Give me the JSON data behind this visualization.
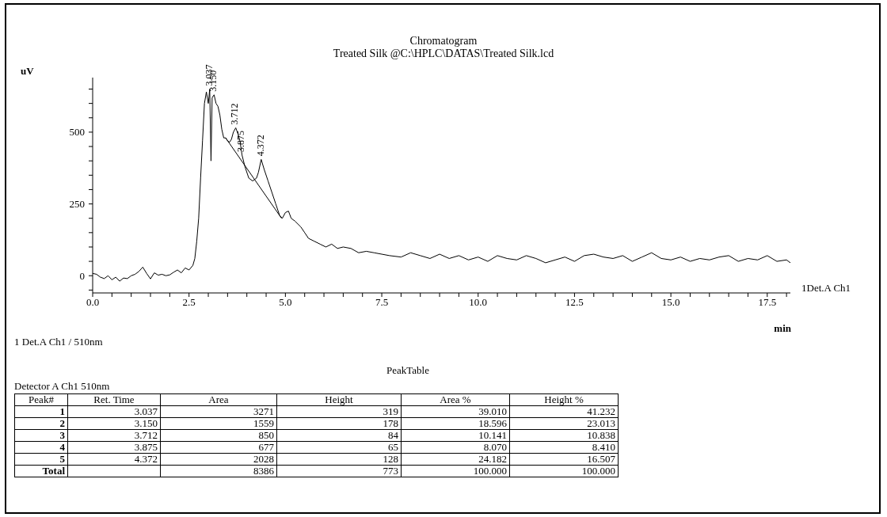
{
  "chart_data": {
    "type": "line",
    "title": "Chromatogram",
    "subtitle": "Treated Silk @C:\\HPLC\\DATAS\\Treated Silk.lcd",
    "ylabel": "uV",
    "xlabel": "min",
    "xlim": [
      0,
      18.1
    ],
    "ylim": [
      -60,
      690
    ],
    "xticks": [
      {
        "value": 0,
        "label": "0.0"
      },
      {
        "value": 0.5,
        "label": null
      },
      {
        "value": 1,
        "label": null
      },
      {
        "value": 1.5,
        "label": null
      },
      {
        "value": 2,
        "label": null
      },
      {
        "value": 2.5,
        "label": "2.5"
      },
      {
        "value": 3,
        "label": null
      },
      {
        "value": 3.5,
        "label": null
      },
      {
        "value": 4,
        "label": null
      },
      {
        "value": 4.5,
        "label": null
      },
      {
        "value": 5,
        "label": "5.0"
      },
      {
        "value": 5.5,
        "label": null
      },
      {
        "value": 6,
        "label": null
      },
      {
        "value": 6.5,
        "label": null
      },
      {
        "value": 7,
        "label": null
      },
      {
        "value": 7.5,
        "label": "7.5"
      },
      {
        "value": 8,
        "label": null
      },
      {
        "value": 8.5,
        "label": null
      },
      {
        "value": 9,
        "label": null
      },
      {
        "value": 9.5,
        "label": null
      },
      {
        "value": 10,
        "label": "10.0"
      },
      {
        "value": 10.5,
        "label": null
      },
      {
        "value": 11,
        "label": null
      },
      {
        "value": 11.5,
        "label": null
      },
      {
        "value": 12,
        "label": null
      },
      {
        "value": 12.5,
        "label": "12.5"
      },
      {
        "value": 13,
        "label": null
      },
      {
        "value": 13.5,
        "label": null
      },
      {
        "value": 14,
        "label": null
      },
      {
        "value": 14.5,
        "label": null
      },
      {
        "value": 15,
        "label": "15.0"
      },
      {
        "value": 15.5,
        "label": null
      },
      {
        "value": 16,
        "label": null
      },
      {
        "value": 16.5,
        "label": null
      },
      {
        "value": 17,
        "label": null
      },
      {
        "value": 17.5,
        "label": "17.5"
      },
      {
        "value": 18,
        "label": null
      }
    ],
    "yticks": [
      {
        "value": -50,
        "label": null
      },
      0,
      {
        "value": 50,
        "label": null
      },
      {
        "value": 100,
        "label": null
      },
      {
        "value": 150,
        "label": null
      },
      {
        "value": 200,
        "label": null
      },
      250,
      {
        "value": 300,
        "label": null
      },
      {
        "value": 350,
        "label": null
      },
      {
        "value": 400,
        "label": null
      },
      {
        "value": 450,
        "label": null
      },
      500,
      {
        "value": 550,
        "label": null
      },
      {
        "value": 600,
        "label": null
      },
      {
        "value": 650,
        "label": null
      }
    ],
    "grid": false,
    "legend": false,
    "marker": "none",
    "line_style": "solid",
    "series": [
      {
        "name": "1Det.A Ch1",
        "color": "#000000",
        "x": [
          0,
          0.1,
          0.2,
          0.3,
          0.4,
          0.5,
          0.6,
          0.7,
          0.8,
          0.9,
          1.0,
          1.1,
          1.2,
          1.3,
          1.4,
          1.5,
          1.6,
          1.7,
          1.8,
          1.9,
          2.0,
          2.1,
          2.2,
          2.3,
          2.4,
          2.5,
          2.6,
          2.65,
          2.7,
          2.75,
          2.8,
          2.85,
          2.9,
          2.95,
          3.0,
          3.037,
          3.07,
          3.1,
          3.15,
          3.2,
          3.25,
          3.3,
          3.35,
          3.4,
          3.45,
          3.5,
          3.55,
          3.6,
          3.65,
          3.712,
          3.78,
          3.82,
          3.875,
          3.95,
          4.05,
          4.15,
          4.25,
          4.3,
          4.372,
          4.45,
          4.55,
          4.65,
          4.75,
          4.85,
          4.92,
          5.0,
          5.08,
          5.15,
          5.25,
          5.4,
          5.5,
          5.6,
          5.75,
          5.9,
          6.05,
          6.2,
          6.35,
          6.5,
          6.7,
          6.9,
          7.1,
          7.3,
          7.5,
          7.7,
          8.0,
          8.25,
          8.5,
          8.75,
          9.0,
          9.25,
          9.5,
          9.75,
          10.0,
          10.25,
          10.5,
          10.75,
          11.0,
          11.25,
          11.5,
          11.75,
          12.0,
          12.25,
          12.5,
          12.75,
          13.0,
          13.25,
          13.5,
          13.75,
          14.0,
          14.25,
          14.5,
          14.75,
          15.0,
          15.25,
          15.5,
          15.75,
          16.0,
          16.25,
          16.5,
          16.75,
          17.0,
          17.25,
          17.5,
          17.75,
          18.0,
          18.1
        ],
        "values": [
          8,
          5,
          -5,
          -10,
          0,
          -14,
          -5,
          -19,
          -8,
          -10,
          0,
          5,
          15,
          30,
          8,
          -11,
          10,
          2,
          5,
          0,
          3,
          12,
          20,
          10,
          27,
          20,
          36,
          60,
          120,
          200,
          340,
          470,
          600,
          640,
          600,
          650,
          400,
          620,
          630,
          600,
          590,
          560,
          510,
          480,
          480,
          470,
          465,
          475,
          500,
          515,
          490,
          470,
          420,
          380,
          340,
          330,
          340,
          360,
          405,
          370,
          330,
          290,
          250,
          210,
          200,
          220,
          225,
          200,
          190,
          170,
          150,
          130,
          120,
          110,
          100,
          110,
          95,
          100,
          95,
          80,
          85,
          80,
          75,
          70,
          65,
          80,
          70,
          60,
          75,
          60,
          70,
          55,
          65,
          50,
          70,
          60,
          55,
          70,
          60,
          45,
          55,
          65,
          50,
          70,
          75,
          65,
          60,
          70,
          50,
          65,
          80,
          60,
          55,
          65,
          50,
          60,
          55,
          65,
          70,
          50,
          60,
          55,
          70,
          50,
          55,
          45
        ]
      },
      {
        "color": "#000000",
        "x": [
          3.45,
          4.9
        ],
        "values": [
          480,
          200
        ]
      }
    ],
    "annotations": [
      {
        "text": "3.037",
        "x": 3.037,
        "y": 650
      },
      {
        "text": "3.150",
        "x": 3.15,
        "y": 630
      },
      {
        "text": "3.712",
        "x": 3.712,
        "y": 515
      },
      {
        "text": "3.875",
        "x": 3.875,
        "y": 420
      },
      {
        "text": "4.372",
        "x": 4.372,
        "y": 405
      },
      "1  Det.A Ch1 / 510nm",
      "PeakTable",
      "Detector A Ch1 510nm",
      "Peak#\tRet. Time\tArea\tHeight\tArea %\tHeight %",
      "1\t3.037\t3271\t319\t39.010\t41.232",
      "2\t3.150\t1559\t178\t18.596\t23.013",
      "3\t3.712\t850\t84\t10.141\t10.838",
      "4\t3.875\t677\t65\t8.070\t8.410",
      "5\t4.372\t2028\t128\t24.182\t16.507",
      "Total\t\t8386\t773\t100.000\t100.000"
    ]
  }
}
